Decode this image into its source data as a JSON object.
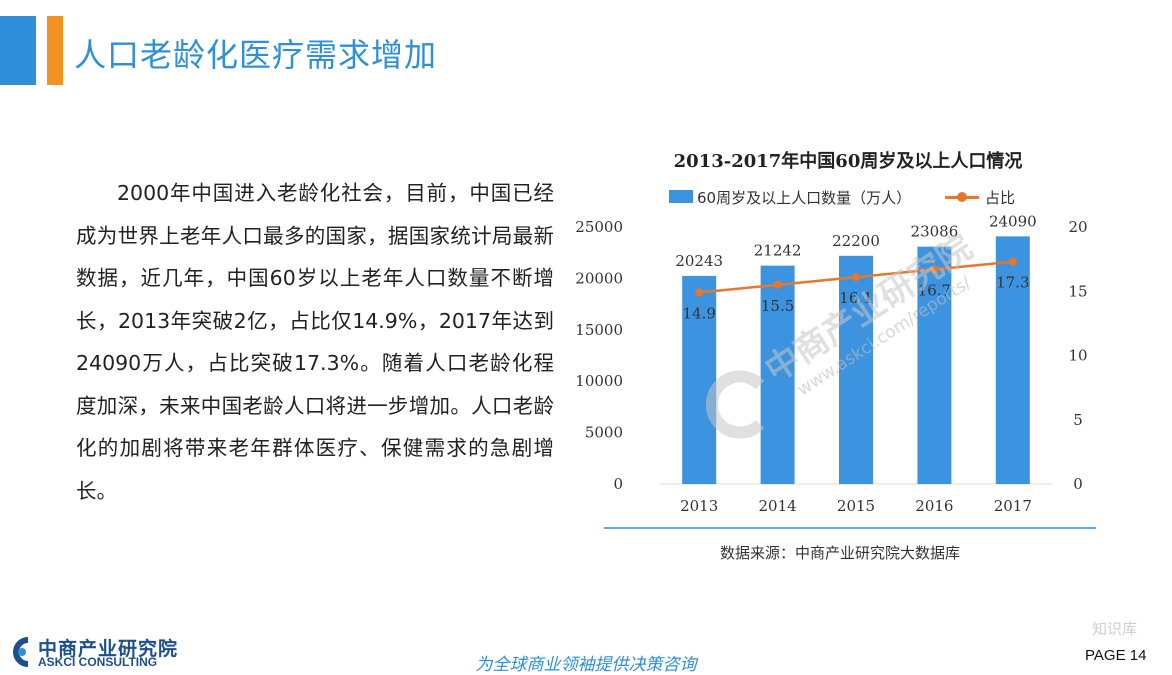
{
  "slide": {
    "title": "人口老龄化医疗需求增加",
    "body": "2000年中国进入老龄化社会，目前，中国已经成为世界上老年人口最多的国家，据国家统计局最新数据，近几年，中国60岁以上老年人口数量不断增长，2013年突破2亿，占比仅14.9%，2017年达到24090万人，占比突破17.3%。随着人口老龄化程度加深，未来中国老龄人口将进一步增加。人口老龄化的加剧将带来老年群体医疗、保健需求的急剧增长。",
    "source": "数据来源：中商产业研究院大数据库"
  },
  "chart_data": {
    "type": "bar",
    "title": "2013-2017年中国60周岁及以上人口情况",
    "categories": [
      "2013",
      "2014",
      "2015",
      "2016",
      "2017"
    ],
    "series": [
      {
        "name": "60周岁及以上人口数量（万人）",
        "type": "bar",
        "axis": "left",
        "values": [
          20243,
          21242,
          22200,
          23086,
          24090
        ],
        "color": "#3c93e0"
      },
      {
        "name": "占比",
        "type": "line",
        "axis": "right",
        "values": [
          14.9,
          15.5,
          16.1,
          16.7,
          17.3
        ],
        "color": "#e8772e"
      }
    ],
    "y_left": {
      "range": [
        0,
        25000
      ],
      "ticks": [
        0,
        5000,
        10000,
        15000,
        20000,
        25000
      ]
    },
    "y_right": {
      "range": [
        0,
        20
      ],
      "ticks": [
        0,
        5,
        10,
        15,
        20
      ]
    },
    "legend_position": "top",
    "grid": false
  },
  "watermark": {
    "brand": "中商产业研究院",
    "url": "www.askci.com/reports/",
    "wechat": "知识库"
  },
  "footer": {
    "logo_cn": "中商产业研究院",
    "logo_en": "ASKCI CONSULTING",
    "slogan": "为全球商业领袖提供决策咨询",
    "page": "PAGE  14"
  },
  "colors": {
    "accent_blue": "#2f8fd8",
    "accent_orange": "#f39223",
    "bar": "#3c93e0",
    "line": "#e8772e"
  }
}
